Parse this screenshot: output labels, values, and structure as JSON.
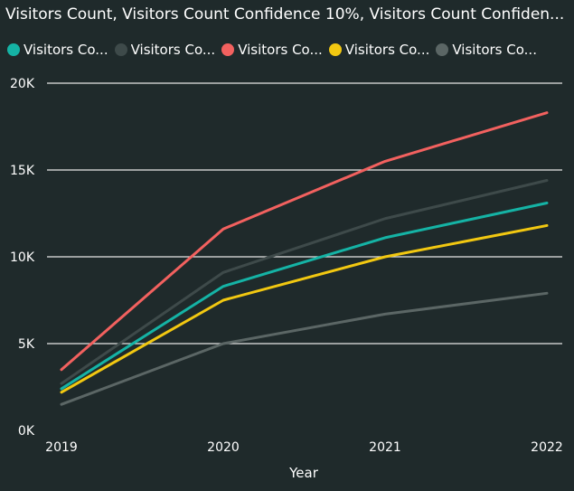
{
  "chart_data": {
    "type": "line",
    "title": "Visitors Count, Visitors Count Confidence 10%, Visitors Count Confiden...",
    "xlabel": "Year",
    "ylabel": "",
    "categories": [
      "2019",
      "2020",
      "2021",
      "2022"
    ],
    "ylim": [
      0,
      20000
    ],
    "yticks": [
      {
        "value": 0,
        "label": "0K"
      },
      {
        "value": 5000,
        "label": "5K"
      },
      {
        "value": 10000,
        "label": "10K"
      },
      {
        "value": 15000,
        "label": "15K"
      },
      {
        "value": 20000,
        "label": "20K"
      }
    ],
    "grid": true,
    "legend": "top-left",
    "series": [
      {
        "name": "Visitors Co...",
        "color": "#15b3a5",
        "values": [
          2400,
          8300,
          11100,
          13100
        ]
      },
      {
        "name": "Visitors Co...",
        "color": "#3e4a4a",
        "values": [
          2700,
          9100,
          12200,
          14400
        ]
      },
      {
        "name": "Visitors Co...",
        "color": "#f2615f",
        "values": [
          3500,
          11600,
          15500,
          18300
        ]
      },
      {
        "name": "Visitors Co...",
        "color": "#f2c811",
        "values": [
          2200,
          7500,
          10000,
          11800
        ]
      },
      {
        "name": "Visitors Co...",
        "color": "#5b6665",
        "values": [
          1500,
          5000,
          6700,
          7900
        ]
      }
    ]
  }
}
